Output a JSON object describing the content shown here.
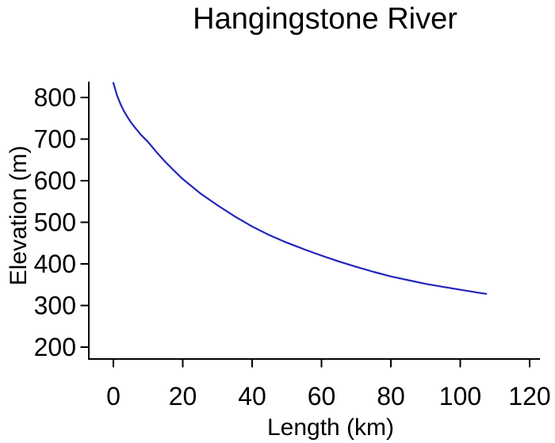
{
  "chart_data": {
    "type": "line",
    "title": "Hangingstone River",
    "xlabel": "Length (km)",
    "ylabel": "Elevation (m)",
    "xlim": [
      0,
      120
    ],
    "ylim": [
      200,
      800
    ],
    "x_ticks": [
      0,
      20,
      40,
      60,
      80,
      100,
      120
    ],
    "y_ticks": [
      200,
      300,
      400,
      500,
      600,
      700,
      800
    ],
    "grid": false,
    "legend": false,
    "line_color": "#2323bd",
    "axis_color": "#000000",
    "series": [
      {
        "name": "Hangingstone River longitudinal profile",
        "x": [
          0,
          1,
          2,
          3,
          4,
          5,
          6,
          8,
          10,
          12.5,
          15,
          17.5,
          20,
          25,
          30,
          35,
          40,
          45,
          50,
          55,
          60,
          65,
          70,
          75,
          80,
          85,
          90,
          95,
          100,
          105,
          107.5
        ],
        "y": [
          835,
          806,
          785,
          768,
          754,
          741,
          730,
          710,
          693,
          668,
          645,
          624,
          604,
          570,
          541,
          514,
          490,
          469,
          451,
          435,
          420,
          406,
          393,
          381,
          370,
          361,
          352,
          345,
          338,
          331,
          328
        ]
      }
    ]
  }
}
